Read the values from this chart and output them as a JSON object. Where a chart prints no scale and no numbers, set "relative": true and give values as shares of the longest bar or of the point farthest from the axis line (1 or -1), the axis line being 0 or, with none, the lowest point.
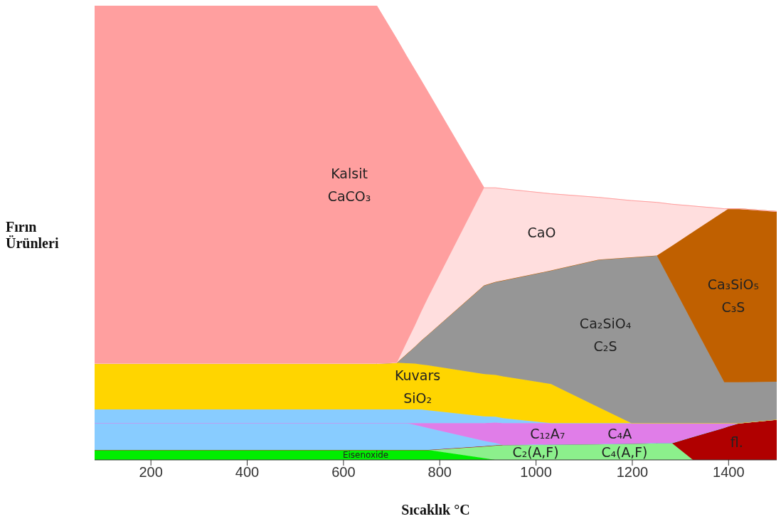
{
  "chart_data": {
    "type": "area",
    "stacked": true,
    "relative": true,
    "xlabel": "Sıcaklık °C",
    "ylabel": "Fırın Ürünleri",
    "xlim": [
      83,
      1500
    ],
    "xticks": [
      200,
      400,
      600,
      800,
      1000,
      1200,
      1400
    ],
    "x": [
      83,
      669,
      711,
      730,
      748,
      761,
      776,
      892,
      916,
      931,
      1031,
      1130,
      1198,
      1251,
      1282,
      1326,
      1391,
      1399,
      1422,
      1500
    ],
    "series": [
      {
        "name": "Eisenoxide",
        "color": "#00ee00",
        "values": [
          0.022,
          0.022,
          0.022,
          0.022,
          0.022,
          0.022,
          0.022,
          0.004,
          0,
          0,
          0,
          0,
          0,
          0,
          0,
          0,
          0,
          0,
          0,
          0
        ]
      },
      {
        "name": "C₂(A,F)\nC₄(A,F)",
        "color": "#8cf08c",
        "values": [
          0,
          0,
          0,
          0,
          0,
          0,
          0,
          0.026,
          0.032,
          0.033,
          0.034,
          0.035,
          0.036,
          0.037,
          0.037,
          0,
          0,
          0,
          0,
          0
        ]
      },
      {
        "name": "fl.",
        "color": "#b00000",
        "values": [
          0,
          0,
          0,
          0,
          0,
          0,
          0,
          0,
          0,
          0,
          0,
          0,
          0,
          0,
          0,
          0.051,
          0.071,
          0.074,
          0.081,
          0.089
        ]
      },
      {
        "color": "#88ccff",
        "values": [
          0.059,
          0.059,
          0.059,
          0.059,
          0.055,
          0.052,
          0.048,
          0.012,
          0.005,
          0,
          0,
          0,
          0,
          0,
          0,
          0,
          0,
          0,
          0,
          0
        ]
      },
      {
        "name": "C₁₂A₇\nC₄A",
        "color": "#e07de8",
        "values": [
          0,
          0,
          0,
          0,
          0.004,
          0.007,
          0.011,
          0.039,
          0.045,
          0.048,
          0.047,
          0.046,
          0.045,
          0.044,
          0.044,
          0.03,
          0.01,
          0.007,
          0,
          0
        ]
      },
      {
        "color": "#88ccff",
        "values": [
          0.03,
          0.03,
          0.03,
          0.03,
          0.03,
          0.03,
          0.028,
          0.015,
          0.013,
          0.011,
          0,
          0,
          0,
          0,
          0,
          0,
          0,
          0,
          0,
          0
        ]
      },
      {
        "name": "Kuvars\nSiO₂",
        "color": "#ffd500",
        "values": [
          0.101,
          0.101,
          0.103,
          0.102,
          0.101,
          0.099,
          0.099,
          0.093,
          0.092,
          0.092,
          0.086,
          0.035,
          0,
          0,
          0,
          0,
          0,
          0,
          0,
          0
        ]
      },
      {
        "name": "Ca₂SiO₄\nC₂S",
        "color": "#969696",
        "values": [
          0,
          0,
          0,
          0.019,
          0.037,
          0.052,
          0.068,
          0.195,
          0.205,
          0.211,
          0.25,
          0.325,
          0.365,
          0.369,
          0.307,
          0.219,
          0.09,
          0.09,
          0.09,
          0.083
        ]
      },
      {
        "name": "Ca₃SiO₅\nC₃S",
        "color": "#c06000",
        "values": [
          0,
          0,
          0,
          0,
          0,
          0,
          0,
          0,
          0,
          0,
          0,
          0,
          0,
          0,
          0.083,
          0.202,
          0.376,
          0.382,
          0.382,
          0.375
        ]
      },
      {
        "name": "CaO",
        "color": "#ffdede",
        "values": [
          0,
          0,
          0,
          0.024,
          0.046,
          0.063,
          0.082,
          0.215,
          0.207,
          0.202,
          0.169,
          0.137,
          0.125,
          0.117,
          0.092,
          0.057,
          0.006,
          0,
          0,
          0
        ]
      },
      {
        "name": "Kalsit\nCaCO₃",
        "color": "#ff9f9f",
        "values": [
          0.788,
          0.788,
          0.712,
          0.635,
          0.564,
          0.511,
          0.451,
          0,
          0,
          0,
          0,
          0,
          0,
          0,
          0,
          0,
          0,
          0,
          0,
          0
        ]
      }
    ]
  }
}
